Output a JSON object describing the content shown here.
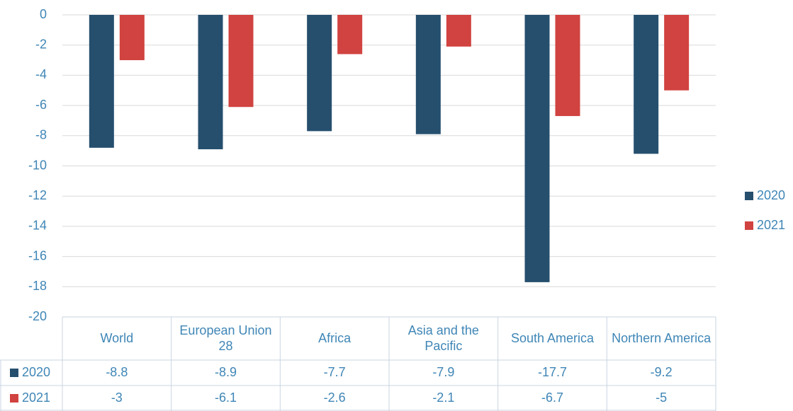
{
  "chart_data": {
    "type": "bar",
    "categories": [
      "World",
      "European Union 28",
      "Africa",
      "Asia and the Pacific",
      "South America",
      "Northern America"
    ],
    "series": [
      {
        "name": "2020",
        "color": "#264f6e",
        "values": [
          -8.8,
          -8.9,
          -7.7,
          -7.9,
          -17.7,
          -9.2
        ]
      },
      {
        "name": "2021",
        "color": "#d04340",
        "values": [
          -3,
          -6.1,
          -2.6,
          -2.1,
          -6.7,
          -5
        ]
      }
    ],
    "ylim": [
      -20,
      0
    ],
    "yticks": [
      0,
      -2,
      -4,
      -6,
      -8,
      -10,
      -12,
      -14,
      -16,
      -18,
      -20
    ],
    "grid": true,
    "legend": "right",
    "data_table": true
  }
}
